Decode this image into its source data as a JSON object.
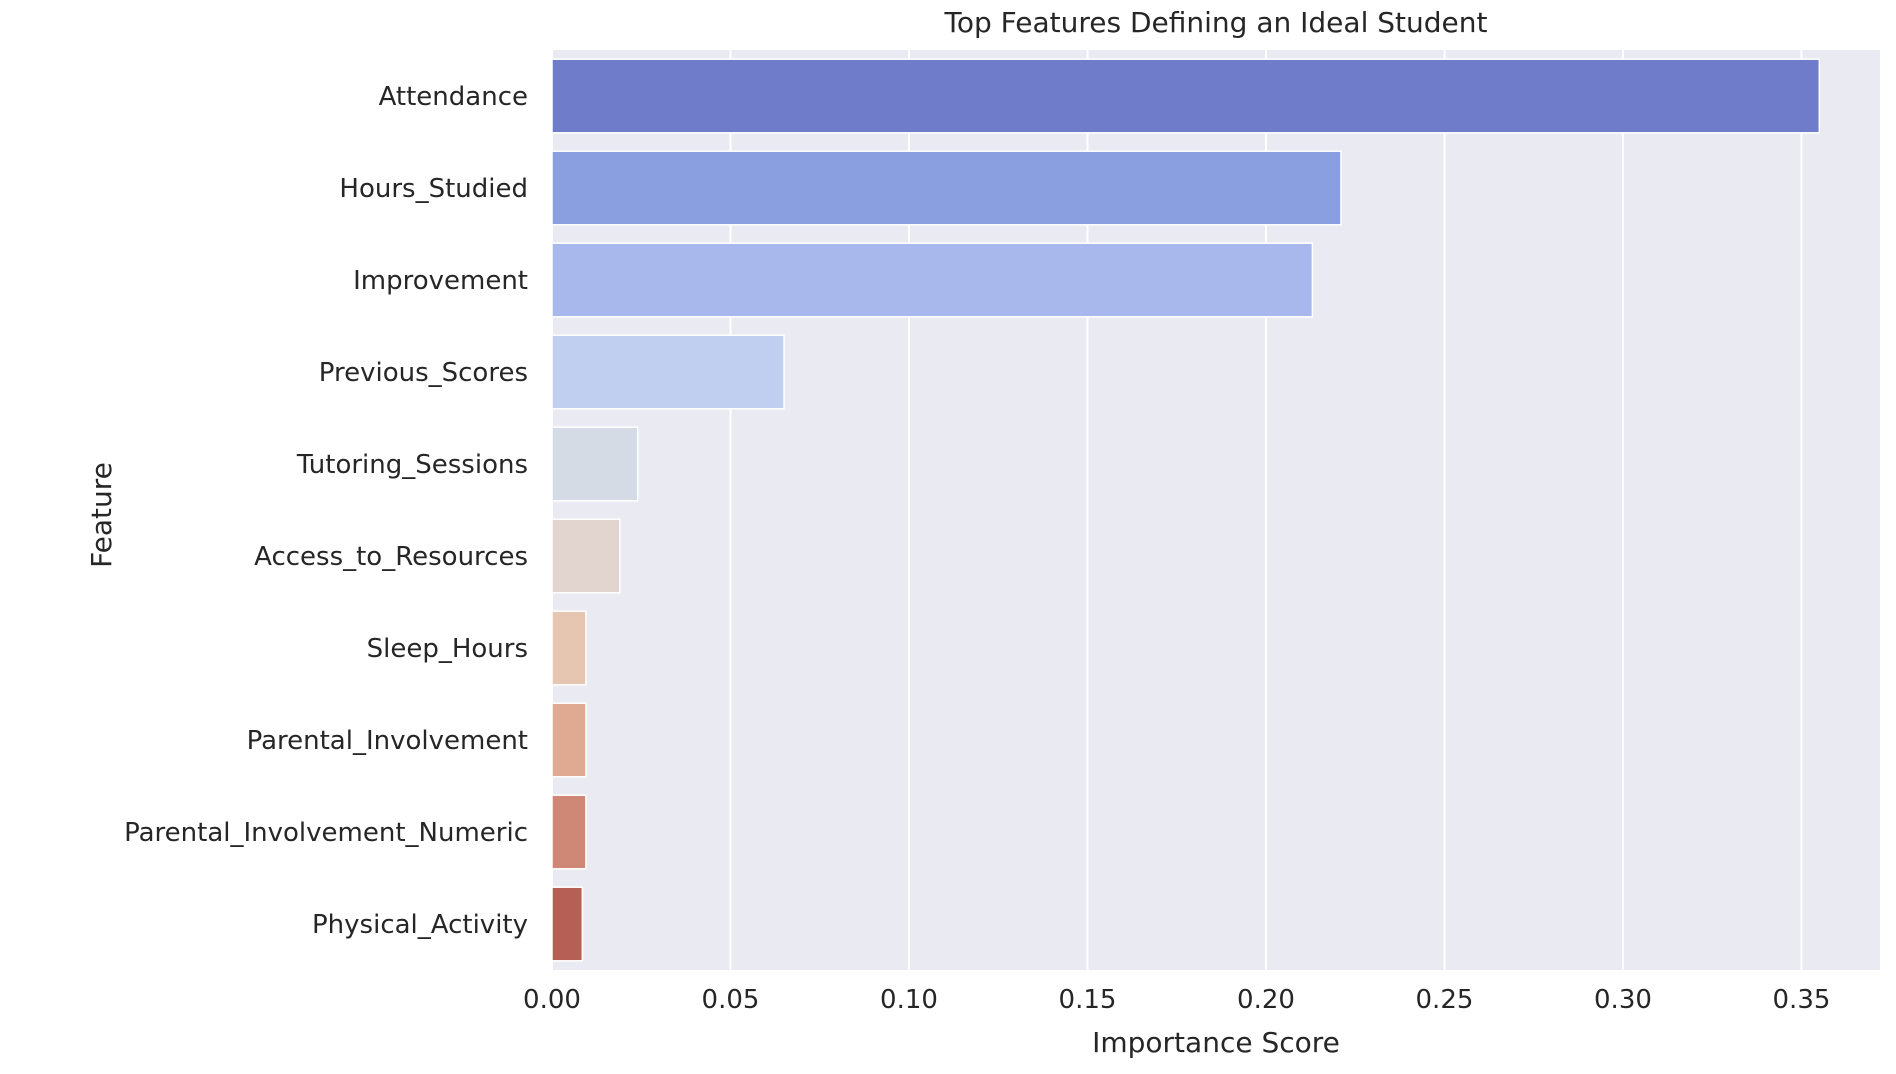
{
  "chart_data": {
    "type": "bar",
    "orientation": "horizontal",
    "title": "Top Features Defining an Ideal Student",
    "xlabel": "Importance Score",
    "ylabel": "Feature",
    "categories": [
      "Attendance",
      "Hours_Studied",
      "Improvement",
      "Previous_Scores",
      "Tutoring_Sessions",
      "Access_to_Resources",
      "Sleep_Hours",
      "Parental_Involvement",
      "Parental_Involvement_Numeric",
      "Physical_Activity"
    ],
    "values": [
      0.355,
      0.221,
      0.213,
      0.065,
      0.024,
      0.019,
      0.0095,
      0.0095,
      0.0095,
      0.0085
    ],
    "colors": [
      "#6f7cc9",
      "#8a9fe0",
      "#a8b8ec",
      "#c0cef0",
      "#d4dbe5",
      "#e2d5d0",
      "#e6c5b1",
      "#dfa992",
      "#cf8875",
      "#b55f55"
    ],
    "xlim": [
      0,
      0.372
    ],
    "xticks": [
      0.0,
      0.05,
      0.1,
      0.15,
      0.2,
      0.25,
      0.3,
      0.35
    ],
    "xtick_labels": [
      "0.00",
      "0.05",
      "0.10",
      "0.15",
      "0.20",
      "0.25",
      "0.30",
      "0.35"
    ],
    "grid": true,
    "style": {
      "plot_background": "#eaeaf2",
      "grid_color": "#ffffff",
      "text_color": "#262626"
    }
  }
}
